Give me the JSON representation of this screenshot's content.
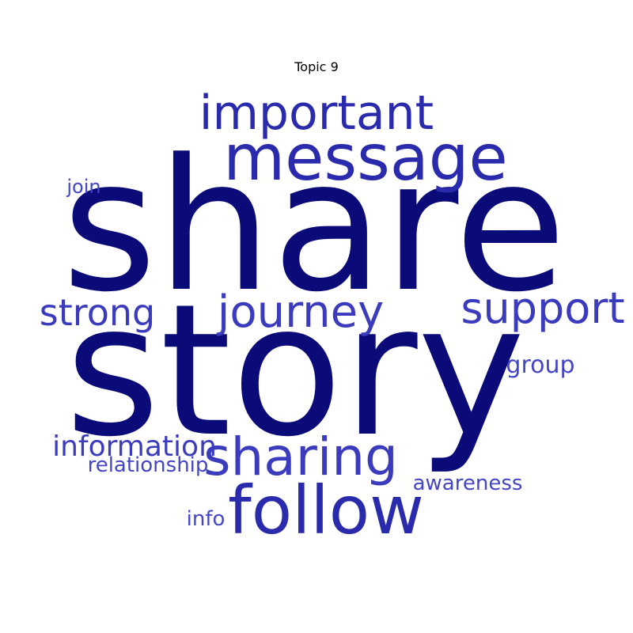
{
  "title": "Topic 9",
  "colors": {
    "darkest": "#0a0a78",
    "dark": "#2a2aac",
    "medium": "#3b3bbe",
    "light": "#4545c8"
  },
  "words": [
    {
      "key": "share",
      "text": "share",
      "tone": "darkest"
    },
    {
      "key": "story",
      "text": "story",
      "tone": "darkest"
    },
    {
      "key": "message",
      "text": "message",
      "tone": "dark"
    },
    {
      "key": "important",
      "text": "important",
      "tone": "dark"
    },
    {
      "key": "follow",
      "text": "follow",
      "tone": "dark"
    },
    {
      "key": "sharing",
      "text": "sharing",
      "tone": "medium"
    },
    {
      "key": "journey",
      "text": "journey",
      "tone": "medium"
    },
    {
      "key": "support",
      "text": "support",
      "tone": "medium"
    },
    {
      "key": "strong",
      "text": "strong",
      "tone": "medium"
    },
    {
      "key": "information",
      "text": "information",
      "tone": "medium"
    },
    {
      "key": "relationship",
      "text": "relationship",
      "tone": "light"
    },
    {
      "key": "group",
      "text": "group",
      "tone": "light"
    },
    {
      "key": "awareness",
      "text": "awareness",
      "tone": "light"
    },
    {
      "key": "join",
      "text": "join",
      "tone": "light"
    },
    {
      "key": "info",
      "text": "info",
      "tone": "light"
    }
  ]
}
